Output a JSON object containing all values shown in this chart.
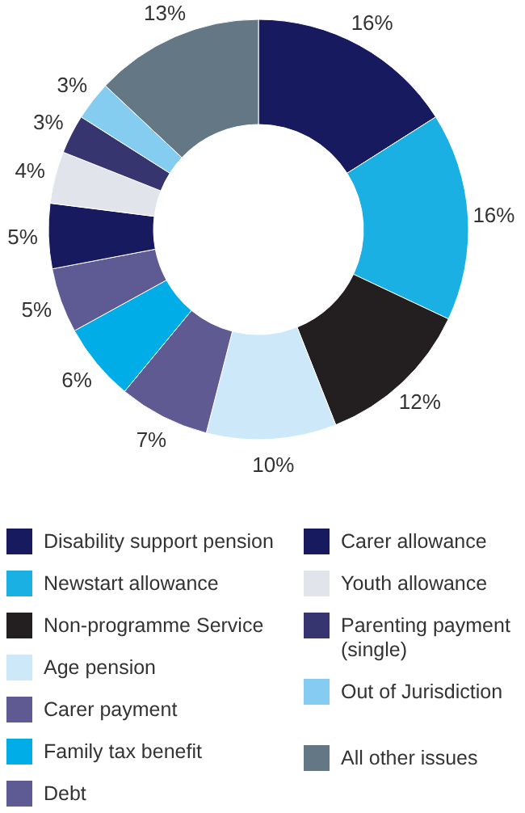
{
  "chart_data": {
    "type": "donut",
    "categories": [
      "Disability support pension",
      "Newstart allowance",
      "Non-programme Service",
      "Age pension",
      "Carer payment",
      "Family tax benefit",
      "Debt",
      "Carer allowance",
      "Youth allowance",
      "Parenting payment (single)",
      "Out of Jurisdiction",
      "All other issues"
    ],
    "values": [
      16,
      16,
      12,
      10,
      7,
      6,
      5,
      5,
      4,
      3,
      3,
      13
    ],
    "colors": [
      "#171a5e",
      "#1ab0e3",
      "#231f20",
      "#cde8f8",
      "#5f5a91",
      "#00ade6",
      "#5e5b94",
      "#171a5e",
      "#e1e4ea",
      "#363570",
      "#85cdf0",
      "#637785"
    ],
    "value_labels": [
      "16%",
      "16%",
      "12%",
      "10%",
      "7%",
      "6%",
      "5%",
      "5%",
      "4%",
      "3%",
      "3%",
      "13%"
    ],
    "legend": "bottom"
  }
}
